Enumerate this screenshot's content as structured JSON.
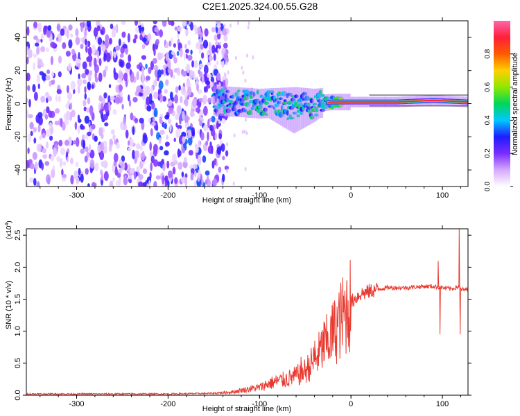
{
  "title": "C2E1.2025.324.00.55.G28",
  "chart_data": [
    {
      "type": "heatmap",
      "title": "C2E1.2025.324.00.55.G28",
      "xlabel": "Height of straight line (km)",
      "ylabel": "Frequency (Hz)",
      "xlim": [
        -355,
        128
      ],
      "ylim": [
        -50,
        50
      ],
      "xticks": [
        -300,
        -200,
        -100,
        0,
        100
      ],
      "xtick_labels": [
        "-300",
        "-200",
        "-100",
        "0",
        "100"
      ],
      "yticks": [
        -40,
        -20,
        0,
        20,
        40
      ],
      "ytick_labels": [
        "-40",
        "-20",
        "0",
        "20",
        "40"
      ],
      "colorbar": {
        "label": "Normalized spectral amplitude",
        "range": [
          0,
          1
        ],
        "ticks": [
          0.0,
          0.2,
          0.4,
          0.6,
          0.8
        ],
        "tick_labels": [
          "0.0",
          "0.2",
          "0.4",
          "0.6",
          "0.8"
        ],
        "colors": [
          "#ffffff",
          "#d6a8ff",
          "#7a2cff",
          "#1f1cff",
          "#00c8ff",
          "#00d65a",
          "#8fe800",
          "#ffd000",
          "#ff5a00",
          "#ff1f3a",
          "#ff66aa"
        ]
      },
      "regions": [
        {
          "name": "noise",
          "x_range": [
            -355,
            -145
          ],
          "freq_range": [
            -50,
            50
          ],
          "amplitude": 0.15
        },
        {
          "name": "signal",
          "x_range": [
            -150,
            128
          ],
          "center_freq": [
            [
              -150,
              2
            ],
            [
              -100,
              0
            ],
            [
              -60,
              1
            ],
            [
              -40,
              0
            ],
            [
              -20,
              1
            ],
            [
              0,
              1
            ],
            [
              50,
              1
            ],
            [
              90,
              2
            ],
            [
              128,
              1
            ]
          ],
          "amplitude": [
            [
              -150,
              0.45
            ],
            [
              -100,
              0.5
            ],
            [
              -60,
              0.5
            ],
            [
              -30,
              0.5
            ],
            [
              -10,
              0.7
            ],
            [
              10,
              0.85
            ],
            [
              128,
              0.9
            ]
          ]
        }
      ]
    },
    {
      "type": "line",
      "xlabel": "Height of straight line (km)",
      "ylabel": "SNR (10 * v/v)",
      "y_multiplier_label": "(x10",
      "y_multiplier_exp": "4",
      "y_multiplier_close": ")",
      "xlim": [
        -355,
        128
      ],
      "ylim": [
        0,
        2.6
      ],
      "xticks": [
        -300,
        -200,
        -100,
        0,
        100
      ],
      "xtick_labels": [
        "-300",
        "-200",
        "-100",
        "0",
        "100"
      ],
      "yticks": [
        0.0,
        0.5,
        1.0,
        1.5,
        2.0,
        2.5
      ],
      "ytick_labels": [
        "0.0",
        "0.5",
        "1.0",
        "1.5",
        "2.0",
        "2.5"
      ],
      "series": [
        {
          "name": "SNR",
          "color": "#e83a30",
          "x": [
            -355,
            -300,
            -250,
            -200,
            -150,
            -130,
            -110,
            -100,
            -90,
            -80,
            -70,
            -60,
            -50,
            -40,
            -30,
            -20,
            -10,
            0,
            10,
            20,
            30,
            40,
            50,
            60,
            70,
            80,
            90,
            100,
            110,
            118,
            120,
            128
          ],
          "y": [
            0.02,
            0.02,
            0.02,
            0.02,
            0.03,
            0.05,
            0.1,
            0.12,
            0.18,
            0.22,
            0.25,
            0.3,
            0.38,
            0.55,
            0.75,
            0.95,
            1.2,
            1.45,
            1.58,
            1.62,
            1.66,
            1.68,
            1.68,
            1.68,
            1.69,
            1.7,
            1.7,
            1.68,
            1.66,
            1.7,
            1.65,
            1.65
          ],
          "spikes": [
            [
              -55,
              0.6
            ],
            [
              -40,
              0.85
            ],
            [
              -30,
              1.15
            ],
            [
              -20,
              1.45
            ],
            [
              -5,
              1.78
            ],
            [
              95,
              2.1
            ],
            [
              97,
              0.95
            ],
            [
              118,
              2.6
            ],
            [
              119,
              0.95
            ]
          ]
        }
      ]
    }
  ]
}
